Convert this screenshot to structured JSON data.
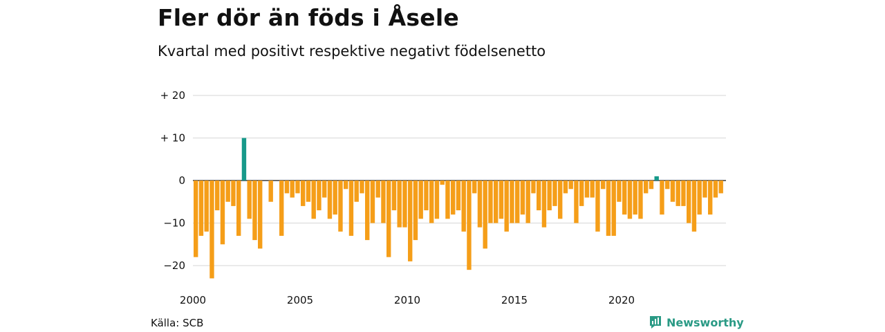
{
  "header": {
    "title": "Fler dör än föds i Åsele",
    "subtitle": "Kvartal med positivt respektive negativt födelsenetto"
  },
  "footer": {
    "source": "Källa: SCB",
    "brand": "Newsworthy",
    "brand_icon": "newsworthy-logo-icon"
  },
  "colors": {
    "positive": "#17998a",
    "negative": "#f59e19",
    "grid": "#dddddd",
    "brand": "#2a9a85"
  },
  "chart_data": {
    "type": "bar",
    "title": "Fler dör än föds i Åsele",
    "subtitle": "Kvartal med positivt respektive negativt födelsenetto",
    "xlabel": "",
    "ylabel": "",
    "ylim": [
      -23,
      20
    ],
    "yticks": [
      20,
      10,
      0,
      -10,
      -20
    ],
    "ytick_labels": [
      "+ 20",
      "+ 10",
      "0",
      "−10",
      "−20"
    ],
    "xtick_labels": [
      "2000",
      "2005",
      "2010",
      "2015",
      "2020"
    ],
    "start_year": 2000,
    "quarters_per_year": 4,
    "grid": true,
    "legend": "none",
    "values": [
      -18,
      -13,
      -12,
      -23,
      -7,
      -15,
      -5,
      -6,
      -13,
      10,
      -9,
      -14,
      -16,
      0,
      -5,
      0,
      -13,
      -3,
      -4,
      -3,
      -6,
      -5,
      -9,
      -7,
      -4,
      -9,
      -8,
      -12,
      -2,
      -13,
      -5,
      -3,
      -14,
      -10,
      -4,
      -10,
      -18,
      -7,
      -11,
      -11,
      -19,
      -14,
      -9,
      -7,
      -10,
      -9,
      -1,
      -9,
      -8,
      -7,
      -12,
      -21,
      -3,
      -11,
      -16,
      -10,
      -10,
      -9,
      -12,
      -10,
      -10,
      -8,
      -10,
      -3,
      -7,
      -11,
      -7,
      -6,
      -9,
      -3,
      -2,
      -10,
      -6,
      -4,
      -4,
      -12,
      -2,
      -13,
      -13,
      -5,
      -8,
      -9,
      -8,
      -9,
      -3,
      -2,
      1,
      -8,
      -2,
      -5,
      -6,
      -6,
      -10,
      -12,
      -8,
      -4,
      -8,
      -4,
      -3
    ]
  }
}
